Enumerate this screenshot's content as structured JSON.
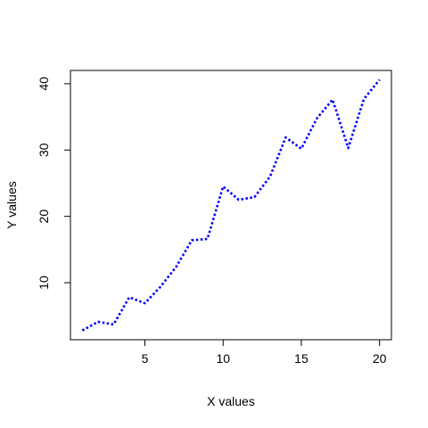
{
  "chart_data": {
    "type": "line",
    "title": "",
    "xlabel": "X values",
    "ylabel": "Y values",
    "x": [
      1,
      2,
      3,
      4,
      5,
      6,
      7,
      8,
      9,
      10,
      11,
      12,
      13,
      14,
      15,
      16,
      17,
      18,
      19,
      20
    ],
    "series": [
      {
        "values": [
          2.8,
          4.1,
          3.7,
          7.8,
          6.9,
          9.4,
          12.4,
          16.4,
          16.6,
          24.5,
          22.5,
          22.9,
          26.0,
          31.9,
          30.2,
          34.8,
          37.6,
          30.3,
          37.7,
          40.6
        ],
        "color": "#0000ff",
        "line_style": "dotted"
      }
    ],
    "xlim": [
      0.24,
      20.76
    ],
    "ylim": [
      1.4,
      42.0
    ],
    "x_ticks": [
      5,
      10,
      15,
      20
    ],
    "y_ticks": [
      10,
      20,
      30,
      40
    ],
    "grid": false,
    "legend": "none"
  }
}
